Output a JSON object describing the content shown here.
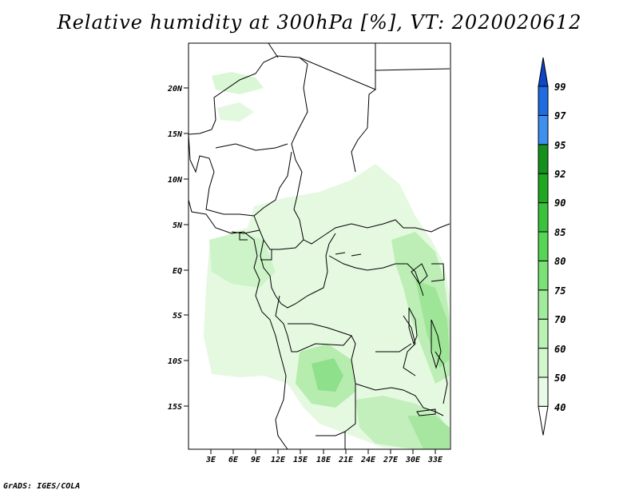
{
  "title": "Relative humidity at 300hPa [%], VT: 2020020612",
  "footer": "GrADS: IGES/COLA",
  "axes": {
    "lat_labels": [
      "20N",
      "15N",
      "10N",
      "5N",
      "EQ",
      "5S",
      "10S",
      "15S"
    ],
    "lon_labels": [
      "3E",
      "6E",
      "9E",
      "12E",
      "15E",
      "18E",
      "21E",
      "24E",
      "27E",
      "30E",
      "33E"
    ]
  },
  "colorbar": {
    "levels": [
      "40",
      "50",
      "60",
      "70",
      "75",
      "80",
      "85",
      "90",
      "92",
      "95",
      "97",
      "99"
    ],
    "colors": [
      "#ffffff",
      "#e8fbe6",
      "#d2f7cd",
      "#b9f2b3",
      "#a1ec9a",
      "#7be277",
      "#57d555",
      "#3ac23a",
      "#20a820",
      "#14911a",
      "#3d8ff0",
      "#1e6be2",
      "#0d47c8"
    ]
  }
}
